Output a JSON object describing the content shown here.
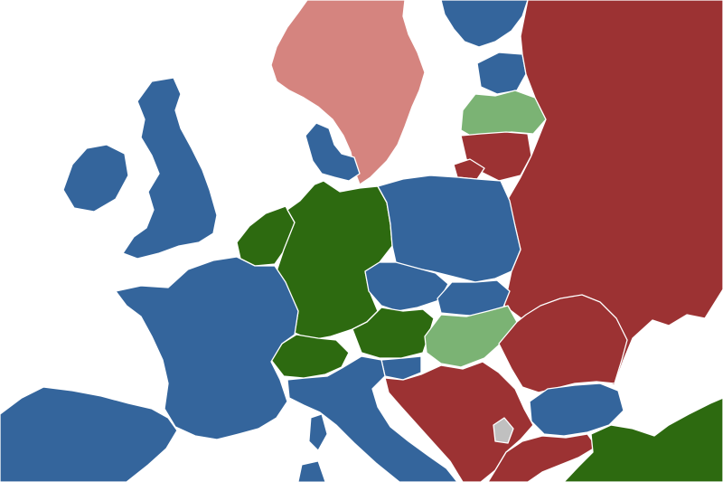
{
  "map": {
    "legend": [],
    "colors": {
      "sea": "#ffffff",
      "blue": "#34659c",
      "dark_red": "#9c3233",
      "dark_green": "#2d6a10",
      "light_green": "#7bb374",
      "pink": "#d5847f",
      "gray": "#c0c0c0",
      "border": "#ffffff"
    },
    "regions": [
      {
        "name": "norway-sweden",
        "category": "pink"
      },
      {
        "name": "finland",
        "category": "blue"
      },
      {
        "name": "estonia",
        "category": "blue"
      },
      {
        "name": "latvia",
        "category": "light_green"
      },
      {
        "name": "lithuania",
        "category": "dark_red"
      },
      {
        "name": "kaliningrad",
        "category": "dark_red"
      },
      {
        "name": "russia-belarus-ukraine",
        "category": "dark_red"
      },
      {
        "name": "denmark",
        "category": "blue"
      },
      {
        "name": "ireland",
        "category": "blue"
      },
      {
        "name": "great-britain",
        "category": "blue"
      },
      {
        "name": "netherlands-belgium-luxembourg",
        "category": "dark_green"
      },
      {
        "name": "germany",
        "category": "dark_green"
      },
      {
        "name": "poland",
        "category": "blue"
      },
      {
        "name": "czechia",
        "category": "blue"
      },
      {
        "name": "slovakia",
        "category": "blue"
      },
      {
        "name": "austria",
        "category": "dark_green"
      },
      {
        "name": "switzerland",
        "category": "dark_green"
      },
      {
        "name": "hungary",
        "category": "light_green"
      },
      {
        "name": "slovenia",
        "category": "blue"
      },
      {
        "name": "france",
        "category": "blue"
      },
      {
        "name": "iberia",
        "category": "blue"
      },
      {
        "name": "italy",
        "category": "blue"
      },
      {
        "name": "corsica",
        "category": "blue"
      },
      {
        "name": "sardinia",
        "category": "blue"
      },
      {
        "name": "western-balkans",
        "category": "dark_red"
      },
      {
        "name": "kosovo",
        "category": "gray"
      },
      {
        "name": "romania-moldova",
        "category": "dark_red"
      },
      {
        "name": "bulgaria",
        "category": "blue"
      },
      {
        "name": "greece",
        "category": "dark_red"
      },
      {
        "name": "turkey",
        "category": "dark_green"
      }
    ]
  }
}
